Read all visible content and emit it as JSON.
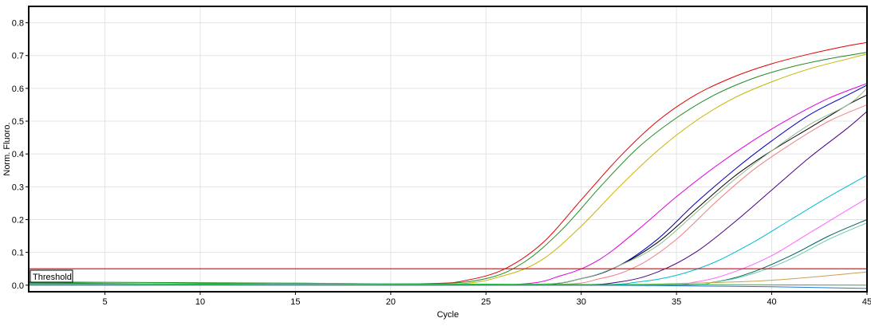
{
  "chart_data": {
    "type": "line",
    "title": "",
    "xlabel": "Cycle",
    "ylabel": "Norm. Fluoro.",
    "xlim": [
      1,
      45
    ],
    "ylim": [
      -0.02,
      0.85
    ],
    "xticks": [
      5,
      10,
      15,
      20,
      25,
      30,
      35,
      40,
      45
    ],
    "yticks": [
      0.0,
      0.1,
      0.2,
      0.3,
      0.4,
      0.5,
      0.6,
      0.7,
      0.8
    ],
    "grid": true,
    "threshold": {
      "label": "Threshold",
      "value": 0.05,
      "color": "#e00000"
    },
    "series": [
      {
        "color": "#e00000",
        "x": [
          1,
          15,
          22,
          24,
          26,
          28,
          30,
          32,
          34,
          36,
          38,
          40,
          42,
          44,
          45
        ],
        "y": [
          0.005,
          0.004,
          0.005,
          0.015,
          0.05,
          0.13,
          0.26,
          0.39,
          0.5,
          0.58,
          0.635,
          0.675,
          0.705,
          0.73,
          0.74
        ]
      },
      {
        "color": "#228b22",
        "x": [
          1,
          15,
          22,
          25,
          27,
          29,
          31,
          33,
          35,
          37,
          39,
          41,
          43,
          45
        ],
        "y": [
          0.01,
          0.006,
          0.004,
          0.02,
          0.07,
          0.17,
          0.3,
          0.42,
          0.51,
          0.58,
          0.63,
          0.665,
          0.69,
          0.71
        ]
      },
      {
        "color": "#c8b400",
        "x": [
          1,
          15,
          23,
          26,
          28,
          30,
          32,
          34,
          36,
          38,
          40,
          42,
          44,
          45
        ],
        "y": [
          0.003,
          0.003,
          0.002,
          0.03,
          0.08,
          0.18,
          0.3,
          0.41,
          0.5,
          0.57,
          0.62,
          0.66,
          0.69,
          0.705
        ]
      },
      {
        "color": "#e000e0",
        "x": [
          1,
          15,
          26,
          29,
          31,
          33,
          35,
          37,
          39,
          41,
          43,
          45
        ],
        "y": [
          0.002,
          0.002,
          0.001,
          0.03,
          0.08,
          0.17,
          0.27,
          0.36,
          0.44,
          0.51,
          0.57,
          0.615
        ]
      },
      {
        "color": "#0000c0",
        "x": [
          1,
          15,
          27,
          30,
          32,
          34,
          36,
          38,
          40,
          42,
          44,
          45
        ],
        "y": [
          0.002,
          0.002,
          0.001,
          0.02,
          0.06,
          0.14,
          0.25,
          0.35,
          0.44,
          0.52,
          0.58,
          0.61
        ]
      },
      {
        "color": "#000000",
        "x": [
          1,
          15,
          27,
          30,
          32,
          34,
          36,
          38,
          40,
          42,
          44,
          45
        ],
        "y": [
          0.002,
          0.002,
          0.001,
          0.02,
          0.06,
          0.13,
          0.23,
          0.33,
          0.41,
          0.48,
          0.55,
          0.58
        ]
      },
      {
        "color": "#8fbc8f",
        "x": [
          1,
          15,
          27,
          30,
          32,
          34,
          36,
          38,
          40,
          42,
          44,
          45
        ],
        "y": [
          0.003,
          0.003,
          0.002,
          0.02,
          0.06,
          0.12,
          0.22,
          0.32,
          0.41,
          0.49,
          0.55,
          0.6
        ]
      },
      {
        "color": "#f08080",
        "x": [
          1,
          15,
          28,
          31,
          33,
          35,
          37,
          39,
          41,
          43,
          45
        ],
        "y": [
          0.002,
          0.002,
          0.001,
          0.02,
          0.06,
          0.14,
          0.25,
          0.35,
          0.43,
          0.5,
          0.55
        ]
      },
      {
        "color": "#4b0082",
        "x": [
          1,
          15,
          29,
          32,
          34,
          36,
          38,
          40,
          42,
          44,
          45
        ],
        "y": [
          0.002,
          0.002,
          0.001,
          0.01,
          0.04,
          0.1,
          0.19,
          0.29,
          0.39,
          0.48,
          0.53
        ]
      },
      {
        "color": "#00bcd4",
        "x": [
          1,
          15,
          30,
          33,
          35,
          37,
          39,
          41,
          43,
          45
        ],
        "y": [
          0.002,
          0.002,
          0.001,
          0.01,
          0.03,
          0.07,
          0.13,
          0.2,
          0.27,
          0.335
        ]
      },
      {
        "color": "#ff66ff",
        "x": [
          1,
          15,
          33,
          36,
          38,
          40,
          42,
          44,
          45
        ],
        "y": [
          0.001,
          0.001,
          0.0,
          0.01,
          0.04,
          0.09,
          0.16,
          0.23,
          0.265
        ]
      },
      {
        "color": "#006060",
        "x": [
          1,
          15,
          34,
          37,
          39,
          41,
          43,
          45
        ],
        "y": [
          0.001,
          0.001,
          0.0,
          0.01,
          0.04,
          0.09,
          0.15,
          0.2
        ]
      },
      {
        "color": "#66cdaa",
        "x": [
          1,
          15,
          34,
          37,
          39,
          41,
          43,
          45
        ],
        "y": [
          0.002,
          0.002,
          0.001,
          0.01,
          0.035,
          0.08,
          0.14,
          0.19
        ]
      },
      {
        "color": "#c8a050",
        "x": [
          1,
          15,
          30,
          35,
          40,
          45
        ],
        "y": [
          0.0,
          0.0,
          0.0,
          0.005,
          0.015,
          0.04
        ]
      },
      {
        "color": "#1e78d0",
        "x": [
          1,
          15,
          30,
          35,
          40,
          45
        ],
        "y": [
          0.0,
          0.0,
          0.0,
          -0.002,
          -0.005,
          -0.01
        ]
      },
      {
        "color": "#20c040",
        "x": [
          1,
          3,
          10,
          15,
          20,
          25,
          30,
          35,
          40,
          45
        ],
        "y": [
          0.008,
          0.007,
          0.003,
          0.006,
          0.004,
          0.003,
          0.002,
          0.002,
          0.001,
          0.0
        ]
      }
    ]
  }
}
